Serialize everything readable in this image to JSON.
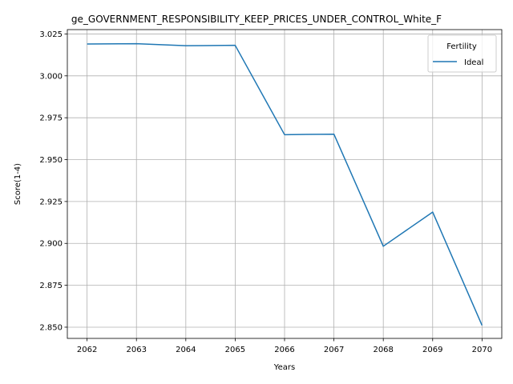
{
  "chart_data": {
    "type": "line",
    "title": "ge_GOVERNMENT_RESPONSIBILITY_KEEP_PRICES_UNDER_CONTROL_White_F",
    "xlabel": "Years",
    "ylabel": "Score(1-4)",
    "x": [
      2062,
      2063,
      2064,
      2065,
      2066,
      2067,
      2068,
      2069,
      2070
    ],
    "x_tick_labels": [
      "2062",
      "2063",
      "2064",
      "2065",
      "2066",
      "2067",
      "2068",
      "2069",
      "2070"
    ],
    "y_ticks": [
      2.85,
      2.875,
      2.9,
      2.925,
      2.95,
      2.975,
      3.0,
      3.025
    ],
    "y_tick_labels": [
      "2.850",
      "2.875",
      "2.900",
      "2.925",
      "2.950",
      "2.975",
      "3.000",
      "3.025"
    ],
    "xlim": [
      2061.6,
      2070.4
    ],
    "ylim": [
      2.8433,
      3.0276
    ],
    "grid": true,
    "legend": {
      "title": "Fertility",
      "placement": "upper right"
    },
    "series": [
      {
        "name": "Ideal",
        "color": "#1f77b4",
        "values": [
          3.019,
          3.0192,
          3.018,
          3.0182,
          2.9649,
          2.9652,
          2.8983,
          2.9187,
          2.8511
        ]
      }
    ]
  }
}
